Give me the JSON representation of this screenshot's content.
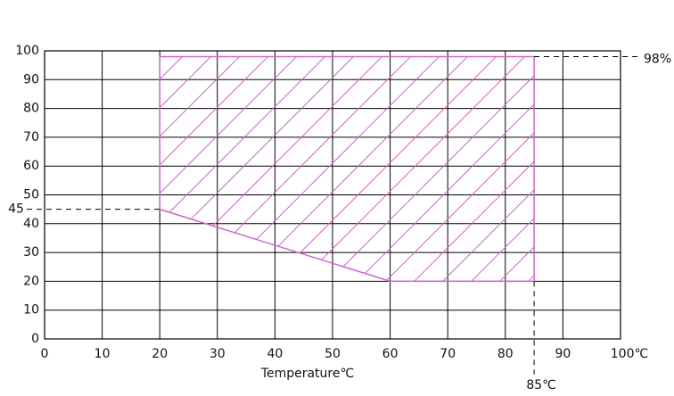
{
  "chart_data": {
    "type": "region",
    "x_label": "Temperature℃",
    "xlim": [
      0,
      100
    ],
    "ylim": [
      0,
      100
    ],
    "xticks": [
      0,
      10,
      20,
      30,
      40,
      50,
      60,
      70,
      80,
      90,
      {
        "value": 100,
        "label": "100℃"
      }
    ],
    "yticks": [
      0,
      10,
      20,
      30,
      40,
      50,
      60,
      70,
      80,
      90,
      100
    ],
    "grid": true,
    "region": {
      "x": [
        20,
        85,
        85,
        60,
        20
      ],
      "y": [
        98,
        98,
        20,
        20,
        45
      ],
      "color": "#cc66cc"
    },
    "y_marks": [
      45,
      {
        "value": 98,
        "label": "98%"
      }
    ],
    "x_marks": [
      {
        "value": 85,
        "label": "85℃"
      }
    ]
  }
}
